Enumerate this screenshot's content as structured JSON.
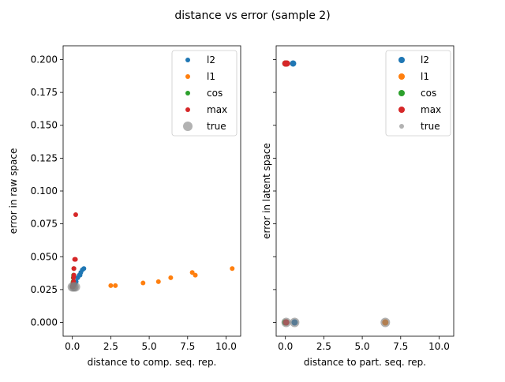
{
  "figure": {
    "title": "distance vs error (sample 2)"
  },
  "colors": {
    "l2": "#1f77b4",
    "l1": "#ff7f0e",
    "cos": "#2ca02c",
    "max": "#d62728",
    "true": "#7f7f7f"
  },
  "chart_data": [
    {
      "type": "scatter",
      "title": "",
      "xlabel": "distance to comp. seq. rep.",
      "ylabel": "error in raw space",
      "xlim": [
        -0.6,
        10.95
      ],
      "ylim": [
        -0.0105,
        0.2105
      ],
      "xticks": [
        "0.0",
        "2.5",
        "5.0",
        "7.5",
        "10.0"
      ],
      "yticks": [
        "0.000",
        "0.025",
        "0.050",
        "0.075",
        "0.100",
        "0.125",
        "0.150",
        "0.175",
        "0.200"
      ],
      "ytick_values": [
        0,
        0.025,
        0.05,
        0.075,
        0.1,
        0.125,
        0.15,
        0.175,
        0.2
      ],
      "xtick_values": [
        0,
        2.5,
        5,
        7.5,
        10
      ],
      "legend_position": "top-right",
      "series": [
        {
          "name": "l2",
          "points": [
            [
              0.05,
              0.027
            ],
            [
              0.1,
              0.028
            ],
            [
              0.15,
              0.029
            ],
            [
              0.2,
              0.03
            ],
            [
              0.25,
              0.031
            ],
            [
              0.35,
              0.034
            ],
            [
              0.45,
              0.036
            ],
            [
              0.5,
              0.036
            ],
            [
              0.55,
              0.038
            ],
            [
              0.65,
              0.04
            ],
            [
              0.75,
              0.041
            ]
          ]
        },
        {
          "name": "l1",
          "points": [
            [
              0.05,
              0.027
            ],
            [
              2.5,
              0.028
            ],
            [
              2.8,
              0.028
            ],
            [
              4.6,
              0.03
            ],
            [
              5.6,
              0.031
            ],
            [
              6.4,
              0.034
            ],
            [
              7.8,
              0.038
            ],
            [
              8.0,
              0.036
            ],
            [
              10.4,
              0.041
            ]
          ]
        },
        {
          "name": "cos",
          "points": [
            [
              0.0,
              0.027
            ],
            [
              0.02,
              0.028
            ],
            [
              0.04,
              0.03
            ],
            [
              0.05,
              0.031
            ],
            [
              0.06,
              0.034
            ],
            [
              0.08,
              0.036
            ],
            [
              0.1,
              0.041
            ]
          ]
        },
        {
          "name": "max",
          "points": [
            [
              0.0,
              0.027
            ],
            [
              0.05,
              0.028
            ],
            [
              0.05,
              0.03
            ],
            [
              0.08,
              0.031
            ],
            [
              0.08,
              0.034
            ],
            [
              0.1,
              0.036
            ],
            [
              0.1,
              0.041
            ],
            [
              0.15,
              0.048
            ],
            [
              0.2,
              0.048
            ],
            [
              0.22,
              0.082
            ]
          ]
        },
        {
          "name": "true",
          "points": [
            [
              0.0,
              0.027
            ],
            [
              0.1,
              0.027
            ],
            [
              0.2,
              0.027
            ]
          ]
        }
      ]
    },
    {
      "type": "scatter",
      "title": "",
      "xlabel": "distance to part. seq. rep.",
      "ylabel": "error in latent space",
      "xlim": [
        -0.6,
        10.95
      ],
      "ylim": [
        -0.0105,
        0.2105
      ],
      "xticks": [
        "0.0",
        "2.5",
        "5.0",
        "7.5",
        "10.0"
      ],
      "xtick_values": [
        0,
        2.5,
        5,
        7.5,
        10
      ],
      "ytick_values": [
        0,
        0.025,
        0.05,
        0.075,
        0.1,
        0.125,
        0.15,
        0.175,
        0.2
      ],
      "legend_position": "top-right",
      "series": [
        {
          "name": "l2",
          "points": [
            [
              0.6,
              0.0
            ],
            [
              0.5,
              0.197
            ],
            [
              0.05,
              0.0
            ],
            [
              0.05,
              0.197
            ]
          ]
        },
        {
          "name": "l1",
          "points": [
            [
              6.5,
              0.0
            ],
            [
              0.05,
              0.0
            ],
            [
              0.05,
              0.197
            ]
          ]
        },
        {
          "name": "cos",
          "points": [
            [
              0.0,
              0.0
            ],
            [
              0.0,
              0.197
            ]
          ]
        },
        {
          "name": "max",
          "points": [
            [
              0.05,
              0.0
            ],
            [
              0.1,
              0.197
            ],
            [
              0.0,
              0.197
            ]
          ]
        },
        {
          "name": "true",
          "points": [
            [
              0.05,
              0.0
            ],
            [
              0.6,
              0.0
            ],
            [
              6.5,
              0.0
            ]
          ]
        }
      ]
    }
  ]
}
